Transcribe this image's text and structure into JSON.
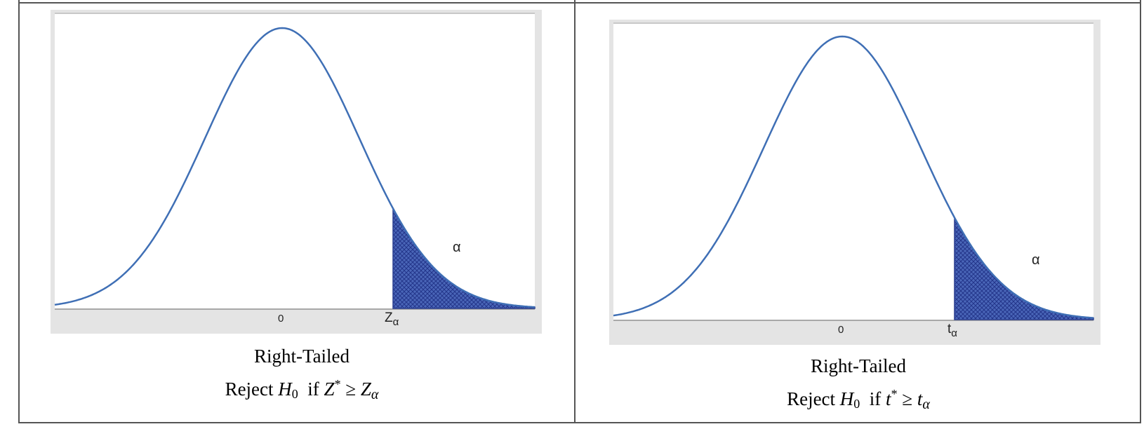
{
  "panels": [
    {
      "id": "z",
      "tick_center": "0",
      "tick_critical_base": "Z",
      "tick_critical_sub": "α",
      "tail_label": "α",
      "caption_title": "Right-Tailed",
      "caption_reject": "Reject",
      "caption_h": "H",
      "caption_h_sub": "0",
      "caption_if": "if",
      "caption_stat": "Z",
      "caption_star": "*",
      "caption_geq": "≥",
      "caption_crit": "Z",
      "caption_crit_sub": "α"
    },
    {
      "id": "t",
      "tick_center": "0",
      "tick_critical_base": "t",
      "tick_critical_sub": "α",
      "tail_label": "α",
      "caption_title": "Right-Tailed",
      "caption_reject": "Reject",
      "caption_h": "H",
      "caption_h_sub": "0",
      "caption_if": "if",
      "caption_stat": "t",
      "caption_star": "*",
      "caption_geq": "≥",
      "caption_crit": "t",
      "caption_crit_sub": "α"
    }
  ],
  "colors": {
    "curve": "#3f6fb5",
    "shade": "#3355a8",
    "panel_bg": "#e4e4e4",
    "border": "#555555"
  }
}
